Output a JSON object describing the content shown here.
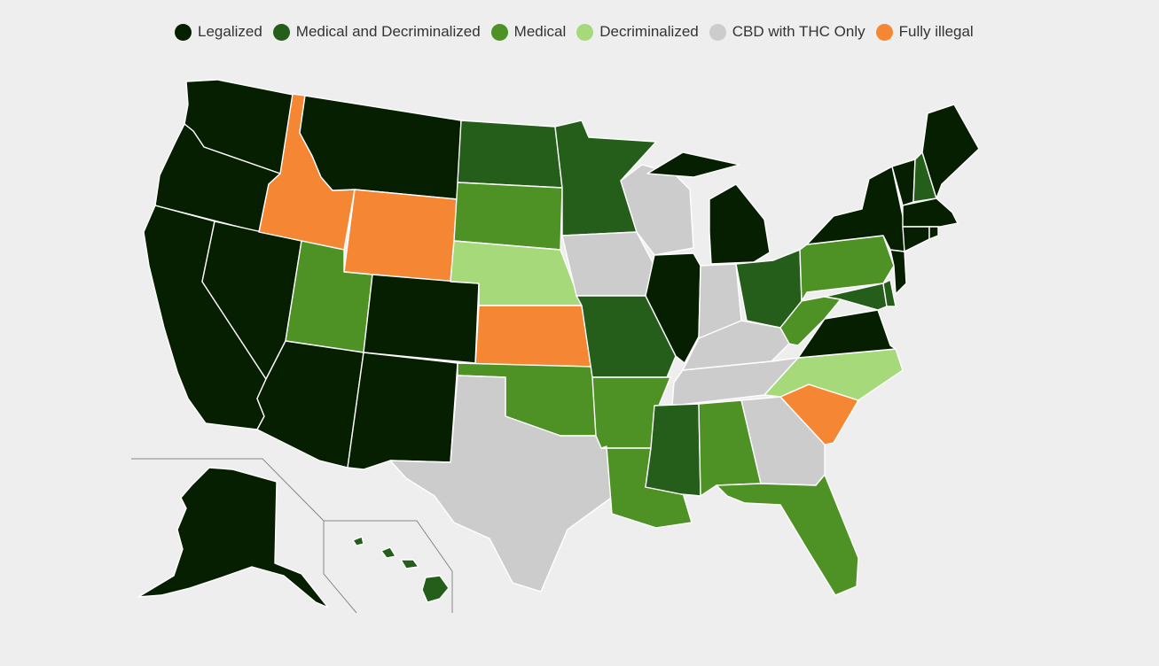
{
  "legend": {
    "items": [
      {
        "key": "legalized",
        "label": "Legalized",
        "color": "#051f00"
      },
      {
        "key": "med_decrim",
        "label": "Medical and Decriminalized",
        "color": "#245e1a"
      },
      {
        "key": "medical",
        "label": "Medical",
        "color": "#4e9125"
      },
      {
        "key": "decrim",
        "label": "Decriminalized",
        "color": "#a6d97a"
      },
      {
        "key": "cbd",
        "label": "CBD with THC Only",
        "color": "#cccccc"
      },
      {
        "key": "illegal",
        "label": "Fully illegal",
        "color": "#f58634"
      }
    ]
  },
  "map": {
    "background": "#eeeeee",
    "state_status": {
      "Washington": "legalized",
      "Oregon": "legalized",
      "California": "legalized",
      "Nevada": "legalized",
      "Idaho": "illegal",
      "Montana": "legalized",
      "Wyoming": "illegal",
      "Utah": "medical",
      "Arizona": "legalized",
      "Colorado": "legalized",
      "New Mexico": "legalized",
      "North Dakota": "med_decrim",
      "South Dakota": "medical",
      "Nebraska": "decrim",
      "Kansas": "illegal",
      "Oklahoma": "medical",
      "Texas": "cbd",
      "Minnesota": "med_decrim",
      "Iowa": "cbd",
      "Missouri": "med_decrim",
      "Arkansas": "medical",
      "Louisiana": "medical",
      "Wisconsin": "cbd",
      "Illinois": "legalized",
      "Michigan": "legalized",
      "Indiana": "cbd",
      "Ohio": "med_decrim",
      "Kentucky": "cbd",
      "Tennessee": "cbd",
      "Mississippi": "med_decrim",
      "Alabama": "medical",
      "Georgia": "cbd",
      "Florida": "medical",
      "South Carolina": "illegal",
      "North Carolina": "decrim",
      "Virginia": "legalized",
      "West Virginia": "medical",
      "Pennsylvania": "medical",
      "New York": "legalized",
      "Vermont": "legalized",
      "New Hampshire": "med_decrim",
      "Maine": "legalized",
      "Massachusetts": "legalized",
      "Rhode Island": "legalized",
      "Connecticut": "legalized",
      "New Jersey": "legalized",
      "Delaware": "med_decrim",
      "Maryland": "med_decrim",
      "Alaska": "legalized",
      "Hawaii": "med_decrim"
    }
  }
}
